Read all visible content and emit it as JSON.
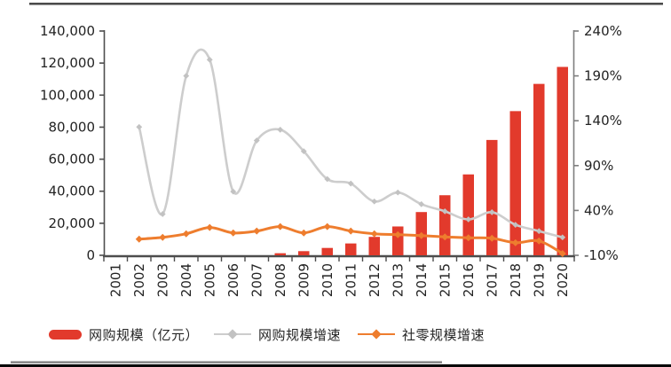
{
  "chart_data": {
    "type": "bar",
    "subtype": "combo-bar-line",
    "title": "",
    "categories": [
      "2001",
      "2002",
      "2003",
      "2004",
      "2005",
      "2006",
      "2007",
      "2008",
      "2009",
      "2010",
      "2011",
      "2012",
      "2013",
      "2014",
      "2015",
      "2016",
      "2017",
      "2018",
      "2019",
      "2020"
    ],
    "series": [
      {
        "name": "网购规模（亿元）",
        "type": "bar",
        "axis": "left",
        "color": "#e23a2c",
        "values": [
          null,
          null,
          null,
          null,
          null,
          null,
          null,
          1300,
          2600,
          4600,
          7400,
          11500,
          18000,
          27000,
          37500,
          50500,
          72000,
          90000,
          107000,
          117600
        ]
      },
      {
        "name": "网购规模增速",
        "type": "line",
        "axis": "right",
        "color": "#cdcdcd",
        "marker_color": "#c2c2c2",
        "values_percent": [
          null,
          133,
          36,
          190,
          208,
          61,
          118,
          130,
          106,
          75,
          70,
          50,
          60,
          47,
          39,
          30,
          38,
          24,
          17,
          10
        ]
      },
      {
        "name": "社零规模增速",
        "type": "line",
        "axis": "right",
        "color": "#ee7d2e",
        "marker_color": "#ee7d2e",
        "values_percent": [
          null,
          8,
          10,
          14,
          21,
          15,
          17,
          22,
          15,
          22,
          17,
          14,
          13,
          12,
          10.5,
          9.5,
          9,
          4,
          6,
          -8
        ]
      }
    ],
    "left_axis": {
      "min": 0,
      "max": 140000,
      "step": 20000,
      "tick_labels": [
        "0",
        "20,000",
        "40,000",
        "60,000",
        "80,000",
        "100,000",
        "120,000",
        "140,000"
      ]
    },
    "right_axis": {
      "min": -10,
      "max": 240,
      "step": 50,
      "tick_labels": [
        "-10%",
        "40%",
        "90%",
        "140%",
        "190%",
        "240%"
      ]
    },
    "grid": "off",
    "legend_position": "bottom",
    "x_tick_label_rotation": 90
  },
  "legend": {
    "items": [
      {
        "label": "网购规模（亿元）",
        "kind": "bar",
        "color": "#e23a2c"
      },
      {
        "label": "网购规模增速",
        "kind": "line",
        "color": "#cdcdcd"
      },
      {
        "label": "社零规模增速",
        "kind": "line",
        "color": "#ee7d2e"
      }
    ]
  },
  "style_colors": {
    "axis_dark": "#4d4d4d",
    "axis_right": "#7f7f7f",
    "tick_text": "#232323",
    "frame_top": "#4a4a4a",
    "frame_bottom_gray": "#8a8a8a",
    "frame_bottom_black": "#060606"
  }
}
